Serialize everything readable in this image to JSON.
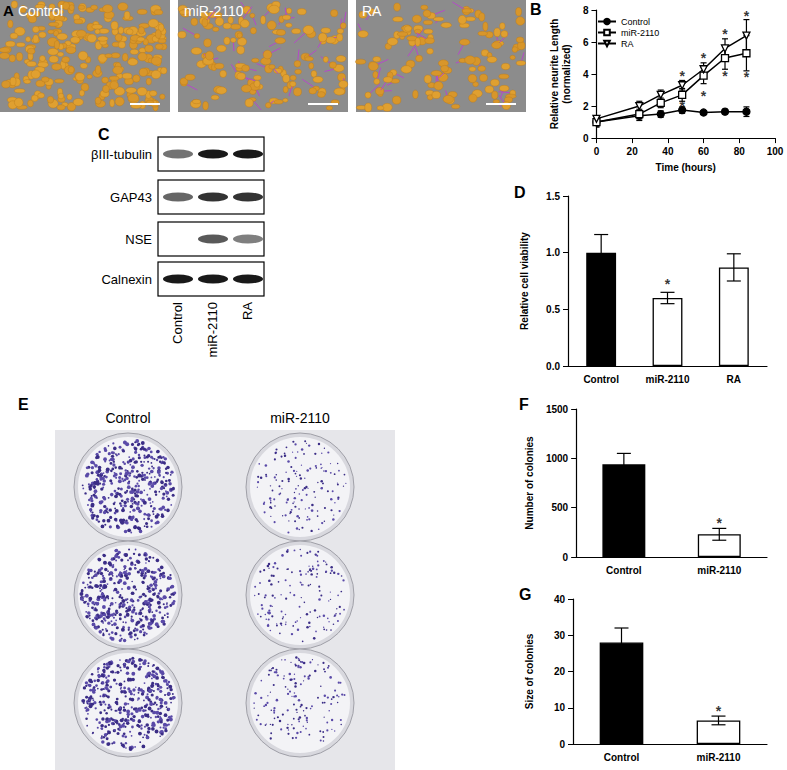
{
  "figure": {
    "A": {
      "label": "A",
      "images": [
        "Control",
        "miR-2110",
        "RA"
      ]
    },
    "C": {
      "label": "C",
      "lanes": [
        "Control",
        "miR-2110",
        "RA"
      ],
      "rows": [
        {
          "name": "βIII-tubulin",
          "intensity": [
            0.55,
            0.9,
            0.9
          ]
        },
        {
          "name": "GAP43",
          "intensity": [
            0.6,
            0.8,
            0.8
          ]
        },
        {
          "name": "NSE",
          "intensity": [
            0,
            0.65,
            0.5
          ]
        },
        {
          "name": "Calnexin",
          "intensity": [
            0.9,
            0.9,
            0.9
          ]
        }
      ]
    },
    "E": {
      "label": "E",
      "columns": [
        "Control",
        "miR-2110"
      ],
      "plates_per_column": 3
    }
  },
  "chart_data": [
    {
      "panel": "B",
      "type": "line",
      "x_label": "Time (hours)",
      "y_label": "Relative neurite Length\n(normalized)",
      "x": [
        0,
        24,
        36,
        48,
        60,
        72,
        84
      ],
      "xlim": [
        0,
        100
      ],
      "xticks": [
        0,
        20,
        40,
        60,
        80,
        100
      ],
      "ylim": [
        0,
        8
      ],
      "yticks": [
        0,
        2,
        4,
        6,
        8
      ],
      "grid": false,
      "legend": "upper left",
      "series": [
        {
          "name": "Control",
          "color": "#000000",
          "marker": "circle",
          "values": [
            1.0,
            1.4,
            1.5,
            1.75,
            1.6,
            1.65,
            1.65
          ],
          "errors": [
            0.3,
            0.3,
            0.2,
            0.2,
            0.1,
            0.15,
            0.3
          ]
        },
        {
          "name": "miR-2110",
          "color": "#000000",
          "marker": "open-square",
          "values": [
            1.0,
            1.5,
            2.2,
            2.7,
            3.9,
            5.0,
            5.3
          ],
          "errors": [
            0.3,
            0.3,
            0.3,
            0.4,
            0.5,
            0.7,
            1.1
          ]
        },
        {
          "name": "RA",
          "color": "#000000",
          "marker": "open-triangle-down",
          "values": [
            1.2,
            2.0,
            2.7,
            3.3,
            4.3,
            5.6,
            6.4
          ],
          "errors": [
            0.2,
            0.3,
            0.3,
            0.3,
            0.4,
            0.6,
            1.0
          ]
        }
      ],
      "annotations": [
        {
          "x": 48,
          "y": 3.9,
          "text": "*"
        },
        {
          "x": 60,
          "y": 5.0,
          "text": "*"
        },
        {
          "x": 72,
          "y": 6.5,
          "text": "*"
        },
        {
          "x": 84,
          "y": 7.6,
          "text": "*"
        },
        {
          "x": 48,
          "y": 2.0,
          "text": "*"
        },
        {
          "x": 60,
          "y": 2.6,
          "text": "*"
        },
        {
          "x": 72,
          "y": 3.9,
          "text": "*"
        },
        {
          "x": 84,
          "y": 3.8,
          "text": "*"
        }
      ]
    },
    {
      "panel": "D",
      "type": "bar",
      "y_label": "Relative cell viability",
      "categories": [
        "Control",
        "miR-2110",
        "RA"
      ],
      "values": [
        1.0,
        0.6,
        0.87
      ],
      "errors": [
        0.16,
        0.05,
        0.12
      ],
      "colors": [
        "#000000",
        "#ffffff",
        "#ffffff"
      ],
      "ylim": [
        0,
        1.5
      ],
      "yticks": [
        {
          "value": 0,
          "label": "0.0"
        },
        {
          "value": 0.5,
          "label": "0.5"
        },
        {
          "value": 1,
          "label": "1.0"
        },
        {
          "value": 1.5,
          "label": "1.5"
        }
      ],
      "grid": false,
      "annotations": [
        {
          "x": "miR-2110",
          "y": 0.72,
          "text": "*"
        }
      ]
    },
    {
      "panel": "F",
      "type": "bar",
      "y_label": "Number of colonies",
      "categories": [
        "Control",
        "miR-2110"
      ],
      "values": [
        940,
        230
      ],
      "errors": [
        110,
        60
      ],
      "colors": [
        "#000000",
        "#ffffff"
      ],
      "ylim": [
        0,
        1500
      ],
      "yticks": [
        0,
        500,
        1000,
        1500
      ],
      "grid": false,
      "annotations": [
        {
          "x": "miR-2110",
          "y": 340,
          "text": "*"
        }
      ]
    },
    {
      "panel": "G",
      "type": "bar",
      "y_label": "Size of colonies",
      "categories": [
        "Control",
        "miR-2110"
      ],
      "values": [
        28,
        6.5
      ],
      "errors": [
        4,
        1.2
      ],
      "colors": [
        "#000000",
        "#ffffff"
      ],
      "ylim": [
        0,
        40
      ],
      "yticks": [
        0,
        10,
        20,
        30,
        40
      ],
      "grid": false,
      "annotations": [
        {
          "x": "miR-2110",
          "y": 9,
          "text": "*"
        }
      ]
    }
  ]
}
